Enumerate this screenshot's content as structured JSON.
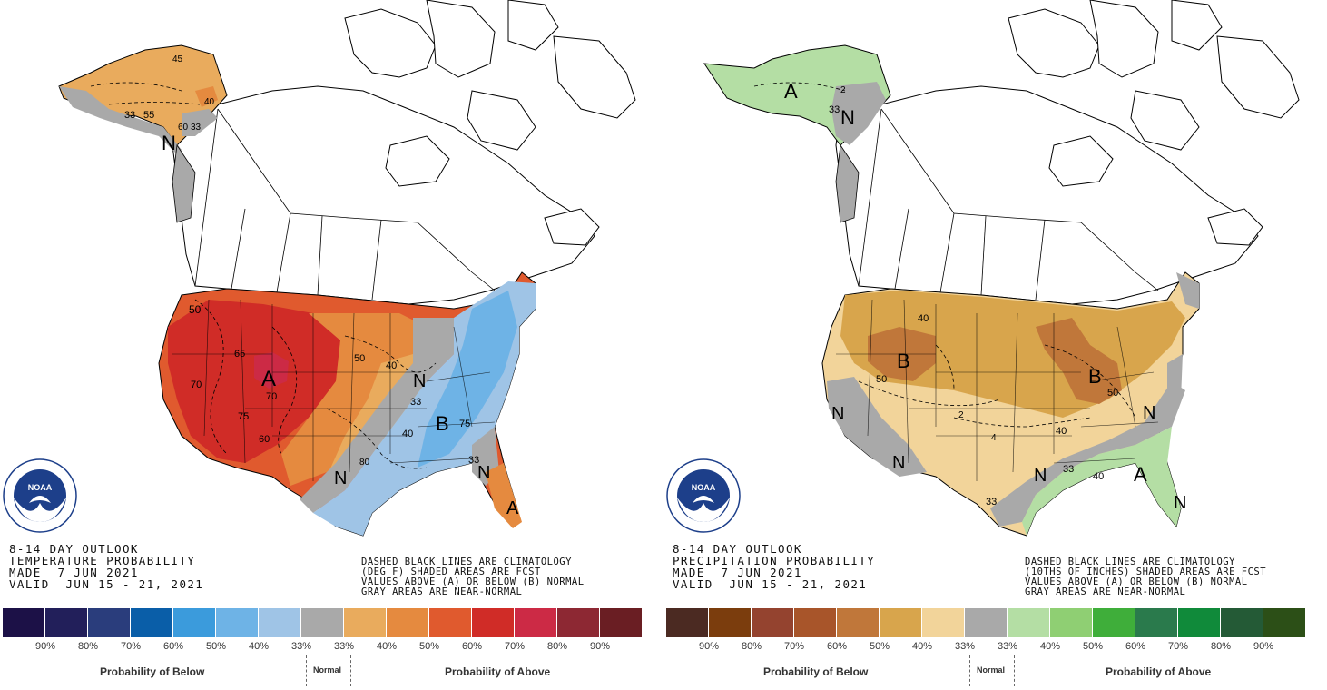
{
  "temperature_panel": {
    "title_lines": [
      "8-14 DAY OUTLOOK",
      "TEMPERATURE PROBABILITY",
      "MADE  7 JUN 2021",
      "VALID  JUN 15 - 21, 2021"
    ],
    "notes": [
      "DASHED BLACK LINES ARE CLIMATOLOGY",
      "(DEG F) SHADED AREAS ARE FCST",
      "VALUES ABOVE (A) OR BELOW (B) NORMAL",
      "GRAY AREAS ARE NEAR-NORMAL"
    ],
    "map_labels": {
      "alaska_contours": [
        "45",
        "40",
        "33",
        "55",
        "60",
        "33"
      ],
      "alaska_category": "N",
      "west_category": "A",
      "west_contours": [
        "50",
        "65",
        "70",
        "75",
        "60",
        "50",
        "40",
        "70"
      ],
      "east_category": "B",
      "east_contours": [
        "33",
        "40",
        "75",
        "33"
      ],
      "near_normal_labels": [
        "N",
        "N",
        "N"
      ],
      "florida_category": "A",
      "climatology_value": "80"
    },
    "colors": {
      "below": [
        "#1c1147",
        "#221f5a",
        "#2a3d7c",
        "#0a5ea8",
        "#3b9bdc",
        "#6eb3e6",
        "#9fc4e6"
      ],
      "normal": "#a9a9a9",
      "above": [
        "#e9ab5d",
        "#e58a3f",
        "#e05a2e",
        "#d02c27",
        "#cc2a45",
        "#8d2833",
        "#6a1e23"
      ]
    },
    "colorbar_ticks": [
      "90%",
      "80%",
      "70%",
      "60%",
      "50%",
      "40%",
      "33%",
      "33%",
      "40%",
      "50%",
      "60%",
      "70%",
      "80%",
      "90%"
    ],
    "below_label": "Probability of Below",
    "normal_label": "Normal",
    "above_label": "Probability of Above"
  },
  "precipitation_panel": {
    "title_lines": [
      "8-14 DAY OUTLOOK",
      "PRECIPITATION PROBABILITY",
      "MADE  7 JUN 2021",
      "VALID  JUN 15 - 21, 2021"
    ],
    "notes": [
      "DASHED BLACK LINES ARE CLIMATOLOGY",
      "(10THS OF INCHES) SHADED AREAS ARE FCST",
      "VALUES ABOVE (A) OR BELOW (B) NORMAL",
      "GRAY AREAS ARE NEAR-NORMAL"
    ],
    "map_labels": {
      "alaska_category": "A",
      "alaska_near_normal": "N",
      "alaska_contours": [
        "2",
        "33"
      ],
      "west_category": "B",
      "west_contours": [
        "40",
        "50",
        "2"
      ],
      "east_category": "B",
      "east_contours": [
        "50",
        "40",
        "33",
        "40",
        "33",
        "4"
      ],
      "near_normal_labels": [
        "N",
        "N",
        "N",
        "N",
        "N"
      ],
      "southeast_category": "A"
    },
    "colors": {
      "below": [
        "#4b2a22",
        "#7b3d0d",
        "#94432f",
        "#a8552a",
        "#c0773a",
        "#d8a54c",
        "#f2d49a"
      ],
      "normal": "#a9a9a9",
      "above": [
        "#b4dea4",
        "#8fcf73",
        "#3fae3a",
        "#2a7a4c",
        "#108a3a",
        "#245a36",
        "#2c4f17"
      ]
    },
    "colorbar_ticks": [
      "90%",
      "80%",
      "70%",
      "60%",
      "50%",
      "40%",
      "33%",
      "33%",
      "40%",
      "50%",
      "60%",
      "70%",
      "80%",
      "90%"
    ],
    "below_label": "Probability of Below",
    "normal_label": "Normal",
    "above_label": "Probability of Above"
  },
  "logo": {
    "text": "NOAA",
    "ring_text": "NATIONAL OCEANIC AND ATMOSPHERIC ADMINISTRATION  U.S. DEPARTMENT OF COMMERCE"
  }
}
